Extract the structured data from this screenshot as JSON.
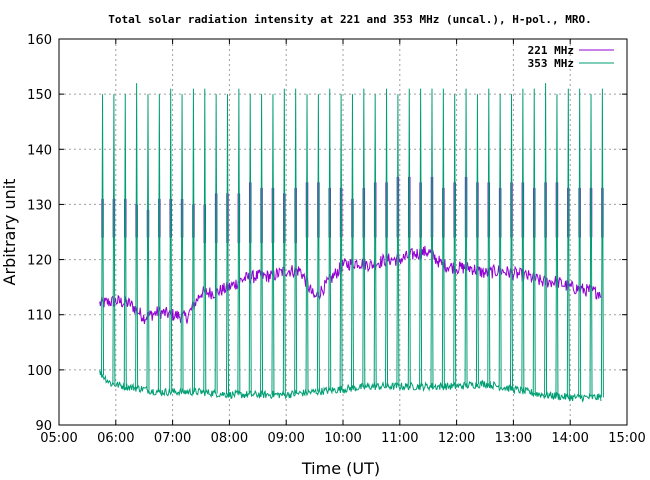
{
  "chart_data": {
    "type": "line",
    "title": "Total solar radiation intensity at 221 and 353 MHz (uncal.), H-pol., MRO.",
    "xlabel": "Time (UT)",
    "ylabel": "Arbitrary unit",
    "xlim": [
      "05:00",
      "15:00"
    ],
    "ylim": [
      90,
      160
    ],
    "x_ticks": [
      "05:00",
      "06:00",
      "07:00",
      "08:00",
      "09:00",
      "10:00",
      "11:00",
      "12:00",
      "13:00",
      "14:00",
      "15:00"
    ],
    "y_ticks": [
      90,
      100,
      110,
      120,
      130,
      140,
      150,
      160
    ],
    "grid": true,
    "legend_position": "top-right",
    "calibration_spikes": {
      "interval_minutes": 12,
      "times": [
        "05:46",
        "05:58",
        "06:10",
        "06:22",
        "06:34",
        "06:46",
        "06:58",
        "07:10",
        "07:22",
        "07:34",
        "07:46",
        "07:58",
        "08:10",
        "08:22",
        "08:34",
        "08:46",
        "08:58",
        "09:10",
        "09:22",
        "09:34",
        "09:46",
        "09:58",
        "10:10",
        "10:22",
        "10:34",
        "10:46",
        "10:58",
        "11:10",
        "11:22",
        "11:34",
        "11:46",
        "11:58",
        "12:10",
        "12:22",
        "12:34",
        "12:46",
        "12:58",
        "13:10",
        "13:22",
        "13:34",
        "13:46",
        "13:58",
        "14:10",
        "14:22",
        "14:34"
      ]
    },
    "series": [
      {
        "name": "221 MHz",
        "color": "#9400d3",
        "baseline": {
          "x": [
            "05:43",
            "06:00",
            "06:15",
            "06:30",
            "06:45",
            "07:00",
            "07:15",
            "07:30",
            "07:45",
            "08:00",
            "08:15",
            "08:30",
            "08:45",
            "09:00",
            "09:15",
            "09:30",
            "09:45",
            "10:00",
            "10:15",
            "10:30",
            "10:45",
            "11:00",
            "11:15",
            "11:30",
            "11:45",
            "12:00",
            "12:15",
            "12:30",
            "12:45",
            "13:00",
            "13:15",
            "13:30",
            "13:45",
            "14:00",
            "14:15",
            "14:30",
            "14:33"
          ],
          "y": [
            112,
            112.5,
            112,
            109.5,
            110.5,
            110,
            109.5,
            114,
            114,
            115,
            116.5,
            117,
            117,
            118,
            118,
            113,
            116,
            119,
            119.5,
            119,
            120,
            120,
            121,
            121.5,
            119,
            118.5,
            118.5,
            117.5,
            118,
            117.5,
            117,
            116,
            116,
            115,
            114.5,
            114,
            114
          ]
        },
        "spike_peaks": [
          131,
          131,
          131,
          130,
          129,
          131,
          131,
          131,
          130,
          130,
          132,
          132,
          132,
          134,
          133,
          133,
          132,
          133,
          134,
          134,
          133,
          133,
          131,
          133,
          134,
          134,
          135,
          135,
          134,
          135,
          133,
          134,
          135,
          134,
          134,
          133,
          134,
          134,
          133,
          134,
          134,
          133,
          133,
          133,
          133
        ],
        "spike_lows": [
          124,
          124,
          124,
          124,
          124,
          124,
          124,
          124,
          124,
          123,
          123,
          123,
          123,
          123,
          123,
          123,
          123,
          123,
          124,
          124,
          124,
          124,
          124,
          124,
          124,
          124,
          124,
          124,
          124,
          124,
          124,
          124,
          124,
          124,
          124,
          124,
          124,
          124,
          124,
          124,
          124,
          124,
          124,
          124,
          124
        ]
      },
      {
        "name": "353 MHz",
        "color": "#009e73",
        "baseline": {
          "x": [
            "05:43",
            "05:55",
            "06:10",
            "06:30",
            "06:45",
            "07:00",
            "07:30",
            "08:00",
            "08:30",
            "09:00",
            "09:30",
            "10:00",
            "10:30",
            "11:00",
            "11:30",
            "12:00",
            "12:30",
            "13:00",
            "13:15",
            "13:30",
            "14:00",
            "14:33"
          ],
          "y": [
            99.5,
            97.5,
            97,
            96.5,
            96,
            96,
            96,
            95.5,
            95.5,
            95.5,
            96,
            96.5,
            97,
            97,
            97,
            97,
            97.5,
            96.5,
            96,
            95.5,
            95,
            95
          ]
        },
        "spike_peaks": [
          150,
          150,
          150,
          152,
          150,
          150,
          151,
          150,
          151,
          151,
          150,
          150,
          151,
          150,
          150,
          150,
          151,
          151,
          150,
          150,
          151,
          150,
          150,
          151,
          150,
          151,
          150,
          151,
          151,
          151,
          151,
          150,
          151,
          150,
          151,
          150,
          150,
          151,
          151,
          152,
          150,
          151,
          151,
          150,
          151
        ]
      }
    ]
  }
}
